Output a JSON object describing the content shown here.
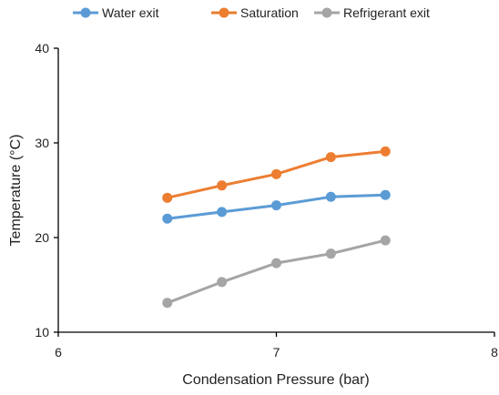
{
  "chart_data": {
    "type": "line",
    "xlabel": "Condensation Pressure (bar)",
    "ylabel": "Temperature (°C)",
    "xlim": [
      6,
      8
    ],
    "ylim": [
      10,
      40
    ],
    "xticks": [
      "6",
      "7",
      "8"
    ],
    "yticks": [
      "10",
      "20",
      "30",
      "40"
    ],
    "x": [
      6.5,
      6.75,
      7.0,
      7.25,
      7.5
    ],
    "legend_position": "top",
    "grid": false,
    "series": [
      {
        "name": "Water exit",
        "color": "#5b9bd5",
        "values": [
          22.0,
          22.7,
          23.4,
          24.3,
          24.5
        ]
      },
      {
        "name": "Saturation",
        "color": "#ed7d31",
        "values": [
          24.2,
          25.5,
          26.7,
          28.5,
          29.1
        ]
      },
      {
        "name": "Refrigerant exit",
        "color": "#a5a5a5",
        "values": [
          13.1,
          15.3,
          17.3,
          18.3,
          19.7
        ]
      }
    ]
  }
}
